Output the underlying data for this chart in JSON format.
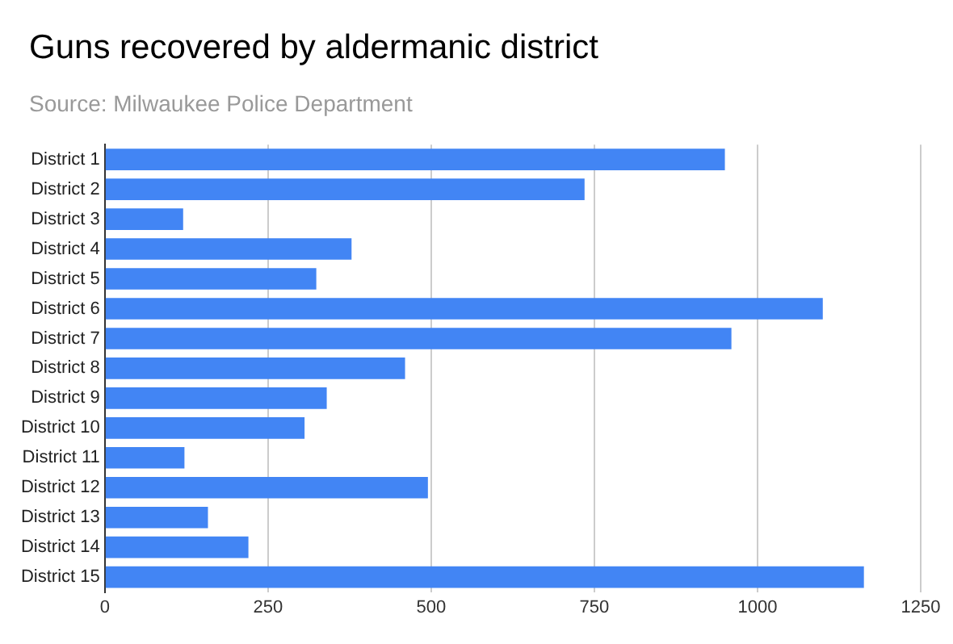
{
  "chart_data": {
    "type": "bar",
    "orientation": "horizontal",
    "title": "Guns recovered by aldermanic district",
    "subtitle": "Source: Milwaukee Police Department",
    "categories": [
      "District 1",
      "District 2",
      "District 3",
      "District 4",
      "District 5",
      "District 6",
      "District 7",
      "District 8",
      "District 9",
      "District 10",
      "District 11",
      "District 12",
      "District 13",
      "District 14",
      "District 15"
    ],
    "values": [
      950,
      735,
      120,
      378,
      324,
      1100,
      960,
      460,
      340,
      306,
      122,
      495,
      158,
      220,
      1163
    ],
    "color": "#4285f4",
    "xlim": [
      0,
      1250
    ],
    "xticks": [
      0,
      250,
      500,
      750,
      1000,
      1250
    ],
    "grid": "x",
    "legend": false
  }
}
